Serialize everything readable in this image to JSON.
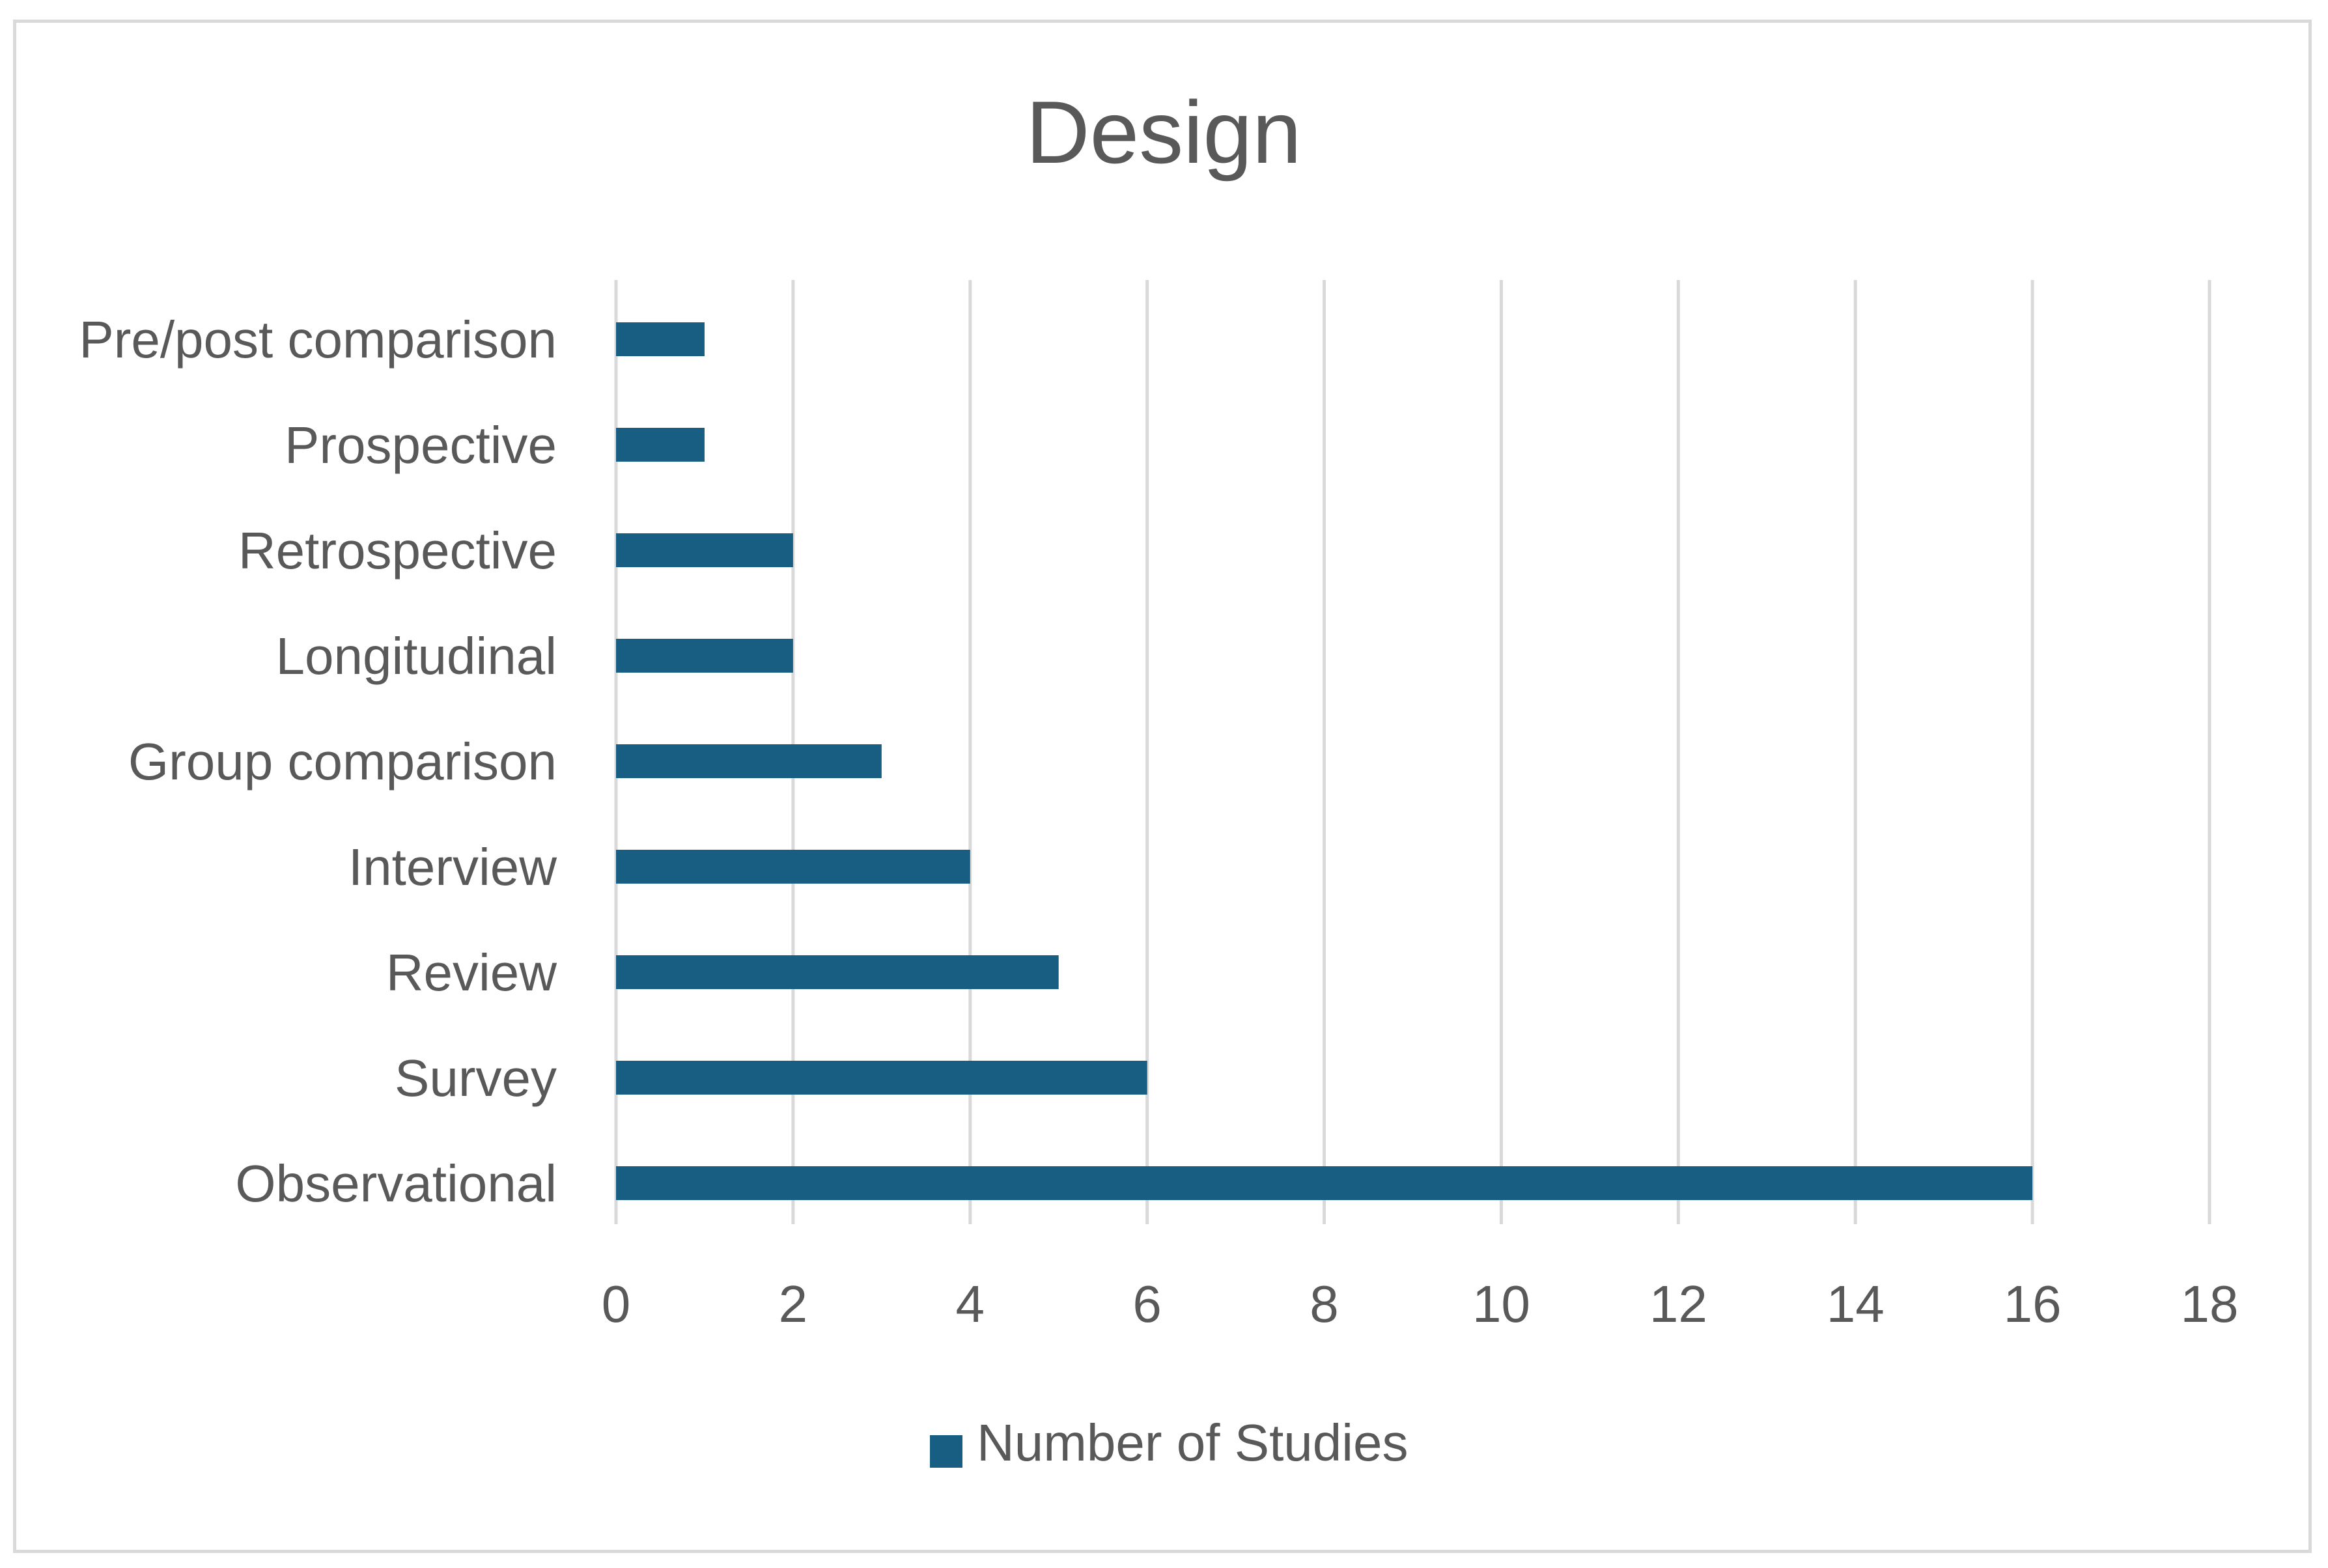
{
  "chart_data": {
    "type": "bar",
    "orientation": "horizontal",
    "title": "Design",
    "xlabel": "",
    "ylabel": "",
    "categories": [
      "Pre/post comparison",
      "Prospective",
      "Retrospective",
      "Longitudinal",
      "Group comparison",
      "Interview",
      "Review",
      "Survey",
      "Observational"
    ],
    "series": [
      {
        "name": "Number of Studies",
        "values": [
          1,
          1,
          2,
          2,
          3,
          4,
          5,
          6,
          16
        ],
        "color": "#175e82"
      }
    ],
    "xlim": [
      0,
      18
    ],
    "x_ticks": [
      "0",
      "2",
      "4",
      "6",
      "8",
      "10",
      "12",
      "14",
      "16",
      "18"
    ],
    "grid": "vertical",
    "gridline_color": "#d9d9d9",
    "legend_position": "bottom",
    "text_color": "#595959"
  }
}
